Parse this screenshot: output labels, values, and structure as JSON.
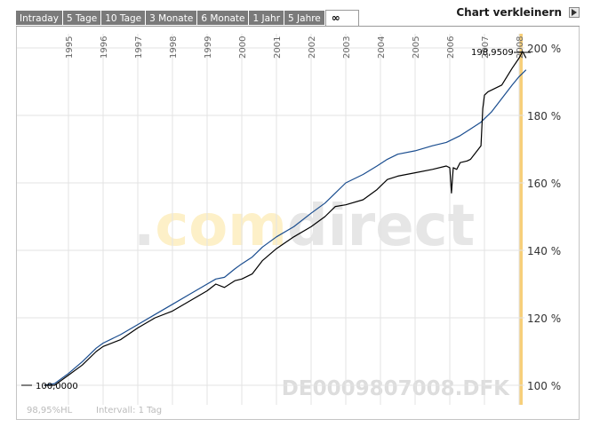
{
  "tabs": [
    "Intraday",
    "5 Tage",
    "10 Tage",
    "3 Monate",
    "6 Monate",
    "1 Jahr",
    "5 Jahre",
    "∞"
  ],
  "active_tab": "∞",
  "shrink_label": "Chart verkleinern",
  "footer": {
    "stat": "98,95%HL",
    "interval": "Intervall: 1 Tag"
  },
  "watermark": {
    "brand_dot": ".",
    "brand_com": "com",
    "brand_direct": "direct",
    "isin": "DE0009807008.DFK"
  },
  "annotations": {
    "start_value": "100,0000",
    "end_value": "198,9509"
  },
  "colors": {
    "series_black": "#000000",
    "series_blue": "#1a4d8f",
    "highlight": "#f7cf7a",
    "grid": "#e3e3e3",
    "tab_bg": "#7a7a7a"
  },
  "chart_data": {
    "type": "line",
    "title": "",
    "xlabel": "",
    "ylabel": "",
    "x_ticks": [
      "1995",
      "1996",
      "1997",
      "1998",
      "1999",
      "2000",
      "2001",
      "2002",
      "2003",
      "2004",
      "2005",
      "2006",
      "2007",
      "2008"
    ],
    "y_ticks": [
      "100 %",
      "120 %",
      "140 %",
      "160 %",
      "180 %",
      "200 %"
    ],
    "ylim": [
      100,
      200
    ],
    "xlim": [
      1994.3,
      2008.3
    ],
    "grid": true,
    "series": [
      {
        "color": "black",
        "points": [
          [
            1994.3,
            100
          ],
          [
            1994.6,
            100
          ],
          [
            1995.0,
            103
          ],
          [
            1995.4,
            106
          ],
          [
            1995.8,
            110
          ],
          [
            1996.0,
            111.5
          ],
          [
            1996.5,
            113.5
          ],
          [
            1997.0,
            117
          ],
          [
            1997.5,
            120
          ],
          [
            1998.0,
            122
          ],
          [
            1998.5,
            125
          ],
          [
            1999.0,
            128
          ],
          [
            1999.25,
            130
          ],
          [
            1999.5,
            129
          ],
          [
            1999.8,
            131
          ],
          [
            2000.0,
            131.5
          ],
          [
            2000.3,
            133
          ],
          [
            2000.6,
            137
          ],
          [
            2001.0,
            140.5
          ],
          [
            2001.5,
            144
          ],
          [
            2002.0,
            147
          ],
          [
            2002.4,
            150
          ],
          [
            2002.7,
            153
          ],
          [
            2003.0,
            153.5
          ],
          [
            2003.5,
            155
          ],
          [
            2003.9,
            158
          ],
          [
            2004.2,
            161
          ],
          [
            2004.5,
            162
          ],
          [
            2005.0,
            163
          ],
          [
            2005.5,
            164
          ],
          [
            2005.9,
            165
          ],
          [
            2006.0,
            164.5
          ],
          [
            2006.05,
            157
          ],
          [
            2006.1,
            164.5
          ],
          [
            2006.2,
            164
          ],
          [
            2006.3,
            166
          ],
          [
            2006.5,
            166.5
          ],
          [
            2006.6,
            167
          ],
          [
            2006.75,
            169
          ],
          [
            2006.9,
            171
          ],
          [
            2006.95,
            182
          ],
          [
            2007.0,
            186
          ],
          [
            2007.1,
            187
          ],
          [
            2007.5,
            189
          ],
          [
            2007.8,
            194
          ],
          [
            2008.0,
            197
          ],
          [
            2008.1,
            198.95
          ],
          [
            2008.2,
            197
          ]
        ]
      },
      {
        "color": "blue",
        "points": [
          [
            1994.3,
            100
          ],
          [
            1994.6,
            100.5
          ],
          [
            1995.0,
            103.5
          ],
          [
            1995.4,
            107
          ],
          [
            1995.8,
            111
          ],
          [
            1996.0,
            112.5
          ],
          [
            1996.5,
            115
          ],
          [
            1997.0,
            118
          ],
          [
            1997.5,
            121
          ],
          [
            1998.0,
            124
          ],
          [
            1998.5,
            127
          ],
          [
            1999.0,
            130
          ],
          [
            1999.25,
            131.5
          ],
          [
            1999.5,
            132
          ],
          [
            1999.8,
            134.5
          ],
          [
            2000.0,
            136
          ],
          [
            2000.3,
            138
          ],
          [
            2000.6,
            141
          ],
          [
            2001.0,
            144
          ],
          [
            2001.5,
            147
          ],
          [
            2002.0,
            151
          ],
          [
            2002.4,
            154
          ],
          [
            2002.7,
            157
          ],
          [
            2003.0,
            160
          ],
          [
            2003.5,
            162.5
          ],
          [
            2003.9,
            165
          ],
          [
            2004.2,
            167
          ],
          [
            2004.5,
            168.5
          ],
          [
            2005.0,
            169.5
          ],
          [
            2005.5,
            171
          ],
          [
            2005.9,
            172
          ],
          [
            2006.3,
            174
          ],
          [
            2006.6,
            176
          ],
          [
            2006.9,
            178
          ],
          [
            2007.2,
            181
          ],
          [
            2007.5,
            185
          ],
          [
            2007.8,
            189
          ],
          [
            2008.0,
            191.5
          ],
          [
            2008.2,
            193.5
          ]
        ]
      }
    ]
  }
}
